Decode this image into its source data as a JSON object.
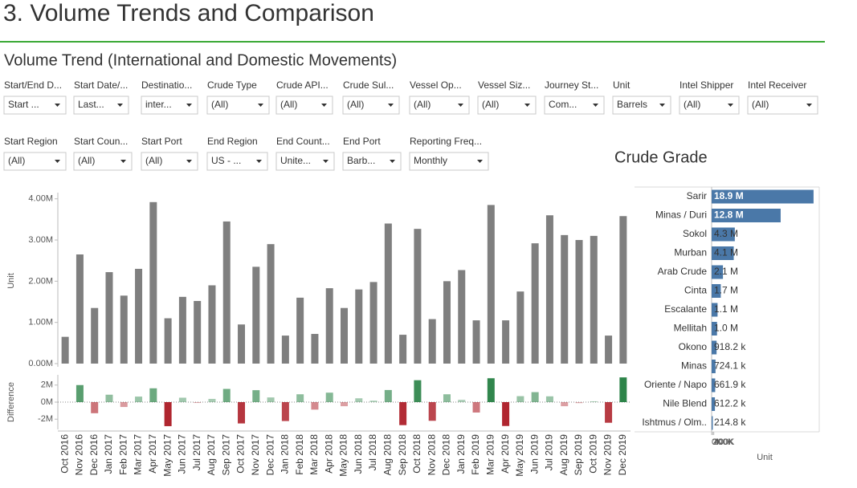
{
  "header": {
    "title": "3. Volume Trends and Comparison",
    "subtitle": "Volume Trend (International and Domestic Movements)"
  },
  "filters": [
    {
      "label": "Start/End D...",
      "value": "Start ..."
    },
    {
      "label": "Start Date/...",
      "value": "Last..."
    },
    {
      "label": "Destinatio...",
      "value": "inter..."
    },
    {
      "label": "Crude Type",
      "value": "(All)"
    },
    {
      "label": "Crude API...",
      "value": "(All)"
    },
    {
      "label": "Crude Sul...",
      "value": "(All)"
    },
    {
      "label": "Vessel Op...",
      "value": "(All)"
    },
    {
      "label": "Vessel Siz...",
      "value": "(All)"
    },
    {
      "label": "Journey St...",
      "value": "Com..."
    },
    {
      "label": "Unit",
      "value": "Barrels"
    },
    {
      "label": "Intel Shipper",
      "value": "(All)"
    },
    {
      "label": "Intel Receiver",
      "value": "(All)"
    },
    {
      "label": "Start Region",
      "value": "(All)"
    },
    {
      "label": "Start Coun...",
      "value": "(All)"
    },
    {
      "label": "Start Port",
      "value": "(All)"
    },
    {
      "label": "End Region",
      "value": "US - ..."
    },
    {
      "label": "End Count...",
      "value": "Unite..."
    },
    {
      "label": "End Port",
      "value": "Barb..."
    },
    {
      "label": "Reporting Freq...",
      "value": "Monthly"
    }
  ],
  "chart_data": [
    {
      "type": "bar",
      "y_label": "Unit",
      "color": "#7f7f7f",
      "categories": [
        "Oct 2016",
        "Nov 2016",
        "Dec 2016",
        "Jan 2017",
        "Feb 2017",
        "Mar 2017",
        "Apr 2017",
        "May 2017",
        "Jun 2017",
        "Jul 2017",
        "Aug 2017",
        "Sep 2017",
        "Oct 2017",
        "Nov 2017",
        "Dec 2017",
        "Jan 2018",
        "Feb 2018",
        "Mar 2018",
        "Apr 2018",
        "May 2018",
        "Jun 2018",
        "Jul 2018",
        "Aug 2018",
        "Sep 2018",
        "Oct 2018",
        "Nov 2018",
        "Dec 2018",
        "Jan 2019",
        "Feb 2019",
        "Mar 2019",
        "Apr 2019",
        "May 2019",
        "Jun 2019",
        "Jul 2019",
        "Aug 2019",
        "Sep 2019",
        "Oct 2019",
        "Nov 2019",
        "Dec 2019"
      ],
      "values": [
        0.65,
        2.65,
        1.35,
        2.22,
        1.65,
        2.3,
        3.92,
        1.1,
        1.62,
        1.52,
        1.9,
        3.45,
        0.95,
        2.35,
        2.9,
        0.68,
        1.6,
        0.72,
        1.83,
        1.35,
        1.8,
        1.98,
        3.4,
        0.7,
        3.27,
        1.08,
        2.0,
        2.27,
        1.05,
        3.85,
        1.05,
        1.75,
        2.92,
        3.6,
        3.12,
        3.0,
        3.1,
        0.68,
        3.58
      ],
      "ylim": [
        0,
        4.15
      ],
      "yticks": [
        {
          "value": 0,
          "label": "0.00M"
        },
        {
          "value": 1,
          "label": "1.00M"
        },
        {
          "value": 2,
          "label": "2.00M"
        },
        {
          "value": 3,
          "label": "3.00M"
        },
        {
          "value": 4,
          "label": "4.00M"
        }
      ]
    },
    {
      "type": "diverging-bar",
      "y_label": "Difference",
      "positive_color": "#1e7b3c",
      "negative_color": "#a8121c",
      "values": [
        null,
        2.0,
        -1.3,
        0.87,
        -0.57,
        0.65,
        1.62,
        -2.82,
        0.52,
        -0.1,
        0.38,
        1.55,
        -2.5,
        1.4,
        0.55,
        -2.22,
        0.92,
        -0.88,
        1.11,
        -0.48,
        0.45,
        0.18,
        1.42,
        -2.7,
        2.57,
        -2.19,
        0.92,
        0.27,
        -1.22,
        2.8,
        -2.8,
        0.7,
        1.17,
        0.68,
        -0.48,
        -0.12,
        0.1,
        -2.42,
        2.9
      ],
      "ylim": [
        -3.2,
        3.2
      ],
      "yticks": [
        {
          "value": -2,
          "label": "-2M"
        },
        {
          "value": 0,
          "label": "0M"
        },
        {
          "value": 2,
          "label": "2M"
        }
      ]
    },
    {
      "type": "hbar",
      "title": "Crude Grade",
      "x_label": "Unit",
      "color": "#4a78a8",
      "categories": [
        "Sarir",
        "Minas / Duri",
        "Sokol",
        "Murban",
        "Arab Crude",
        "Cinta",
        "Escalante",
        "Mellitah",
        "Okono",
        "Minas",
        "Oriente / Napo",
        "Nile Blend",
        "Ishtmus / Olm.."
      ],
      "values": [
        18900,
        12800,
        4300,
        4100,
        2100,
        1700,
        1100,
        1000,
        918.2,
        724.1,
        661.9,
        612.2,
        214.8
      ],
      "value_labels": [
        "18.9 M",
        "12.8 M",
        "4.3 M",
        "4.1 M",
        "2.1 M",
        "1.7 M",
        "1.1 M",
        "1.0 M",
        "918.2 k",
        "724.1 k",
        "661.9 k",
        "612.2 k",
        "214.8 k"
      ],
      "xlim": [
        0,
        21000
      ],
      "xticks": [
        {
          "value": 0,
          "label": "0K"
        },
        {
          "value": 200,
          "label": "200K"
        },
        {
          "value": 400,
          "label": "400K"
        }
      ]
    }
  ]
}
